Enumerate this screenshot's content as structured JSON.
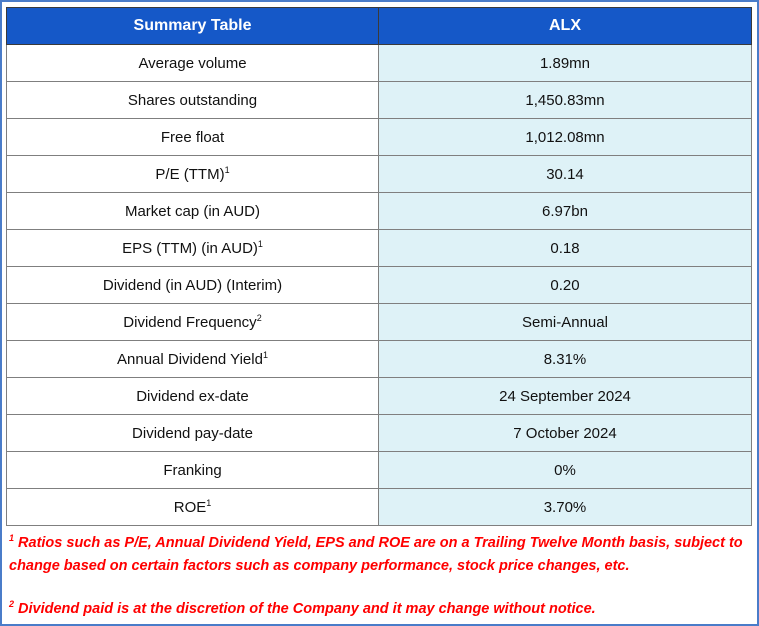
{
  "table": {
    "headers": [
      "Summary Table",
      "ALX"
    ],
    "rows": [
      {
        "label": "Average volume",
        "sup": "",
        "value": "1.89mn"
      },
      {
        "label": "Shares outstanding",
        "sup": "",
        "value": "1,450.83mn"
      },
      {
        "label": "Free float",
        "sup": "",
        "value": "1,012.08mn"
      },
      {
        "label": "P/E (TTM)",
        "sup": "1",
        "value": "30.14"
      },
      {
        "label": "Market cap (in AUD)",
        "sup": "",
        "value": "6.97bn"
      },
      {
        "label": "EPS (TTM) (in AUD)",
        "sup": "1",
        "value": "0.18"
      },
      {
        "label": "Dividend (in AUD) (Interim)",
        "sup": "",
        "value": "0.20"
      },
      {
        "label": "Dividend Frequency",
        "sup": "2",
        "value": "Semi-Annual"
      },
      {
        "label": "Annual Dividend Yield",
        "sup": "1",
        "value": "8.31%"
      },
      {
        "label": "Dividend ex-date",
        "sup": "",
        "value": "24 September 2024"
      },
      {
        "label": "Dividend pay-date",
        "sup": "",
        "value": "7 October 2024"
      },
      {
        "label": "Franking",
        "sup": "",
        "value": "0%"
      },
      {
        "label": "ROE",
        "sup": "1",
        "value": "3.70%"
      }
    ]
  },
  "footnotes": [
    {
      "mark": "1",
      "text": " Ratios such as P/E, Annual Dividend Yield, EPS and ROE are on a Trailing Twelve Month basis, subject to change based on certain factors such as company performance, stock price changes, etc."
    },
    {
      "mark": "2",
      "text": " Dividend paid is at the discretion of the Company and it may change without notice."
    }
  ],
  "colors": {
    "header": "#1558c8",
    "value_cell": "#def2f7",
    "footnote": "#ff0000",
    "frame": "#4a7cc9"
  }
}
